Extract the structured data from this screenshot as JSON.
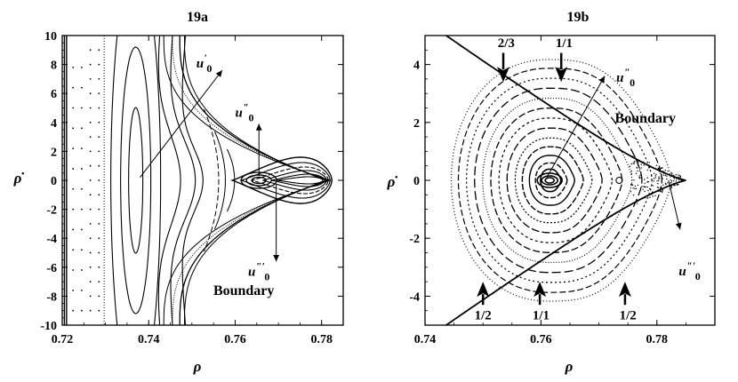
{
  "chart_data": [
    {
      "type": "scatter",
      "title": "19a",
      "xlabel": "ρ",
      "ylabel": "ρ̇",
      "xlim": [
        0.72,
        0.785
      ],
      "ylim": [
        -10,
        10
      ],
      "x_ticks": [
        "0.72",
        "0.74",
        "0.76",
        "0.78"
      ],
      "x_tick_values": [
        0.72,
        0.74,
        0.76,
        0.78
      ],
      "y_ticks": [
        "10",
        "8",
        "6",
        "4",
        "2",
        "0",
        "-2",
        "-4",
        "-6",
        "-8",
        "-10"
      ],
      "y_tick_values": [
        10,
        8,
        6,
        4,
        2,
        0,
        -2,
        -4,
        -6,
        -8,
        -10
      ],
      "grid": false,
      "annotations": [
        {
          "text": "u'0",
          "label": "u",
          "sup": "'",
          "sub": "0",
          "x": 0.751,
          "y": 7.8
        },
        {
          "text": "u\"0",
          "label": "u",
          "sup": "\"",
          "sub": "0",
          "x": 0.76,
          "y": 4.4
        },
        {
          "text": "u\"'0",
          "label": "u",
          "sup": "\"'",
          "sub": "0",
          "x": 0.763,
          "y": -6.6
        },
        {
          "text": "Boundary",
          "x": 0.762,
          "y": -7.9
        }
      ],
      "vectors": [
        {
          "from": [
            0.738,
            0.2
          ],
          "to": [
            0.757,
            7.6
          ]
        },
        {
          "from": [
            0.7655,
            0.3
          ],
          "to": [
            0.7655,
            3.9
          ]
        },
        {
          "from": [
            0.7695,
            -0.3
          ],
          "to": [
            0.7695,
            -5.6
          ]
        }
      ],
      "fixed_points": [
        {
          "type": "elliptic",
          "x": 0.737,
          "y": 0
        },
        {
          "type": "elliptic",
          "x": 0.7655,
          "y": 0
        },
        {
          "type": "hyperbolic",
          "x": 0.782,
          "y": 0
        }
      ],
      "left_edge_lines_x": [
        0.7205,
        0.721
      ]
    },
    {
      "type": "scatter",
      "title": "19b",
      "xlabel": "ρ",
      "ylabel": "ρ̇",
      "xlim": [
        0.74,
        0.79
      ],
      "ylim": [
        -5,
        5
      ],
      "x_ticks": [
        "0.74",
        "0.76",
        "0.78"
      ],
      "x_tick_values": [
        0.74,
        0.76,
        0.78
      ],
      "y_ticks": [
        "4",
        "2",
        "0",
        "-2",
        "-4"
      ],
      "y_tick_values": [
        4,
        2,
        0,
        -2,
        -4
      ],
      "grid": false,
      "annotations": [
        {
          "text": "2/3",
          "x": 0.754,
          "y": 4.6
        },
        {
          "text": "1/1",
          "x": 0.764,
          "y": 4.6
        },
        {
          "text": "u\"0",
          "label": "u",
          "sup": "\"",
          "sub": "0",
          "x": 0.773,
          "y": 3.4
        },
        {
          "text": "Boundary",
          "x": 0.778,
          "y": 2.0
        },
        {
          "text": "u\"'0",
          "label": "u",
          "sup": "\"'",
          "sub": "0",
          "x": 0.785,
          "y": -2.6
        },
        {
          "text": "1/2",
          "x": 0.75,
          "y": -4.5
        },
        {
          "text": "1/1",
          "x": 0.76,
          "y": -4.5
        },
        {
          "text": "1/2",
          "x": 0.775,
          "y": -4.5
        }
      ],
      "vectors": [
        {
          "from": [
            0.761,
            0.1
          ],
          "to": [
            0.771,
            3.6
          ]
        },
        {
          "from": [
            0.782,
            0
          ],
          "to": [
            0.784,
            -1.7
          ]
        }
      ],
      "resonance_arrows": [
        {
          "x": 0.7535,
          "y_from": 4.4,
          "y_to": 3.4
        },
        {
          "x": 0.7635,
          "y_from": 4.4,
          "y_to": 3.4
        },
        {
          "x": 0.75,
          "y_from": -4.3,
          "y_to": -3.5
        },
        {
          "x": 0.7598,
          "y_from": -4.3,
          "y_to": -3.5
        },
        {
          "x": 0.7745,
          "y_from": -4.3,
          "y_to": -3.5
        }
      ],
      "fixed_points": [
        {
          "type": "elliptic",
          "x": 0.7615,
          "y": 0
        },
        {
          "type": "elliptic",
          "x": 0.7735,
          "y": 0
        },
        {
          "type": "hyperbolic",
          "x": 0.785,
          "y": 0
        }
      ]
    }
  ]
}
